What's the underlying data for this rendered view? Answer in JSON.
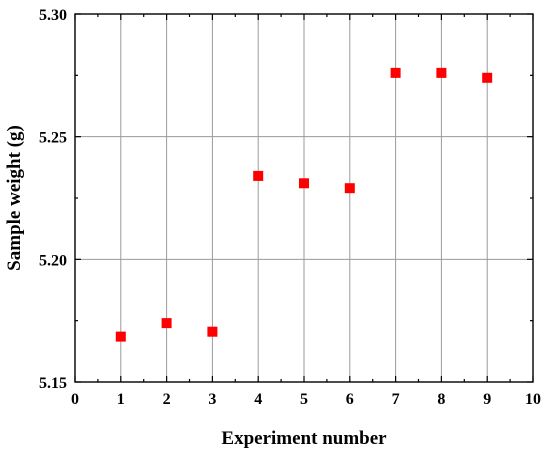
{
  "chart_data": {
    "type": "scatter",
    "title": "",
    "xlabel": "Experiment number",
    "ylabel": "Sample weight (g)",
    "xlim": [
      0,
      10
    ],
    "ylim": [
      5.15,
      5.3
    ],
    "xticks": [
      "0",
      "1",
      "2",
      "3",
      "4",
      "5",
      "6",
      "7",
      "8",
      "9",
      "10"
    ],
    "yticks": [
      "5.15",
      "5.20",
      "5.25",
      "5.30"
    ],
    "grid": true,
    "marker": "square",
    "marker_color": "#ff0000",
    "series": [
      {
        "x": [
          1,
          2,
          3,
          4,
          5,
          6,
          7,
          8,
          9
        ],
        "y": [
          5.1685,
          5.174,
          5.1705,
          5.234,
          5.231,
          5.229,
          5.276,
          5.276,
          5.274
        ]
      }
    ]
  }
}
